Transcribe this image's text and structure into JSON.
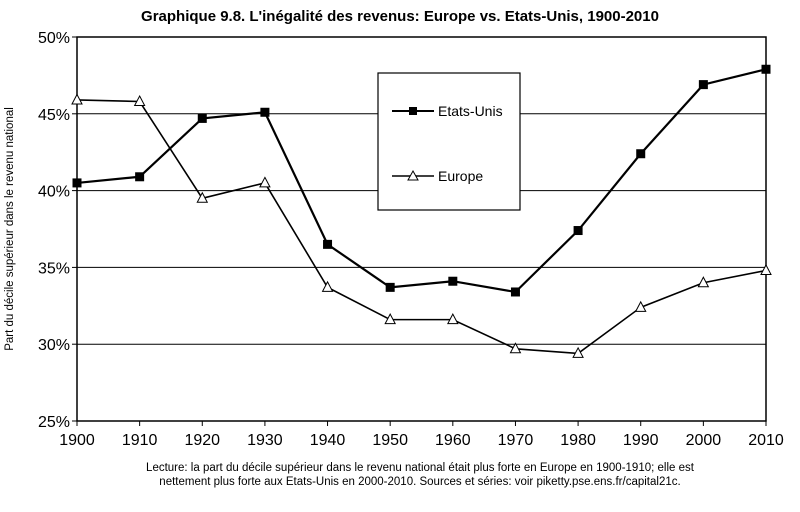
{
  "chart_data": {
    "type": "line",
    "title": "Graphique 9.8. L'inégalité des revenus: Europe vs. Etats-Unis, 1900-2010",
    "xlabel": "",
    "ylabel": "Part du décile supérieur dans le revenu national",
    "x": [
      1900,
      1910,
      1920,
      1930,
      1940,
      1950,
      1960,
      1970,
      1980,
      1990,
      2000,
      2010
    ],
    "xlim": [
      1900,
      2010
    ],
    "ylim": [
      25,
      50
    ],
    "yticks": [
      25,
      30,
      35,
      40,
      45,
      50
    ],
    "ytick_labels": [
      "25%",
      "30%",
      "35%",
      "40%",
      "45%",
      "50%"
    ],
    "xtick_labels": [
      "1900",
      "1910",
      "1920",
      "1930",
      "1940",
      "1950",
      "1960",
      "1970",
      "1980",
      "1990",
      "2000",
      "2010"
    ],
    "grid": "horizontal",
    "legend_position": "top-center",
    "series": [
      {
        "name": "Etats-Unis",
        "marker": "filled-square",
        "values": [
          40.5,
          40.9,
          44.7,
          45.1,
          36.5,
          33.7,
          34.1,
          33.4,
          37.4,
          42.4,
          46.9,
          47.9
        ]
      },
      {
        "name": "Europe",
        "marker": "open-triangle",
        "values": [
          45.9,
          45.8,
          39.5,
          40.5,
          33.7,
          31.6,
          31.6,
          29.7,
          29.4,
          32.4,
          34.0,
          34.8
        ]
      }
    ],
    "caption": [
      "Lecture: la part du décile supérieur dans le revenu national était plus forte en Europe en 1900-1910; elle est",
      "nettement plus forte aux Etats-Unis en 2000-2010. Sources et séries: voir piketty.pse.ens.fr/capital21c."
    ]
  }
}
